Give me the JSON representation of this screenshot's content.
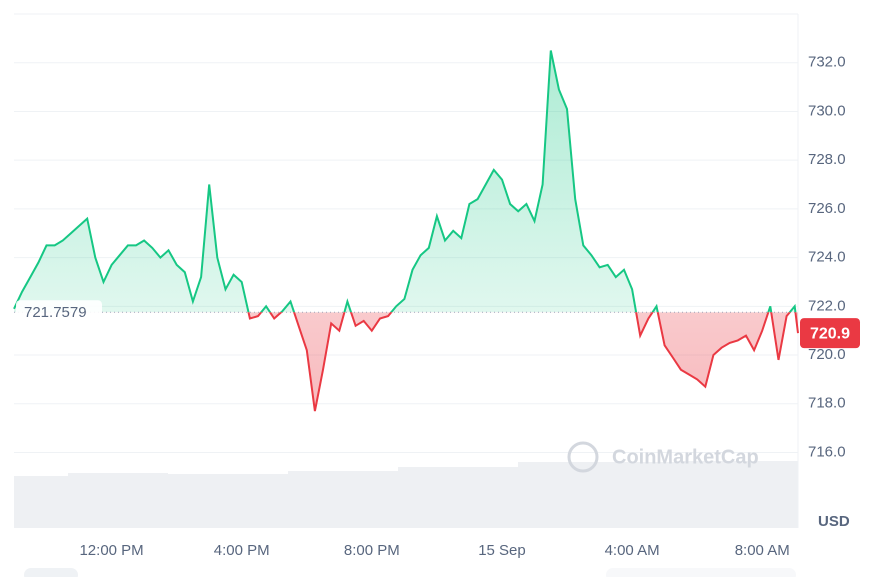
{
  "chart_data": {
    "type": "line",
    "x": [
      9,
      9.25,
      9.5,
      9.75,
      10,
      10.25,
      10.5,
      10.75,
      11,
      11.25,
      11.5,
      11.75,
      12,
      12.25,
      12.5,
      12.75,
      13,
      13.25,
      13.5,
      13.75,
      14,
      14.25,
      14.5,
      14.75,
      15,
      15.25,
      15.5,
      15.75,
      16,
      16.25,
      16.5,
      16.75,
      17,
      17.25,
      17.5,
      17.75,
      18,
      18.25,
      18.5,
      18.75,
      19,
      19.25,
      19.5,
      19.75,
      20,
      20.25,
      20.5,
      20.75,
      21,
      21.25,
      21.5,
      21.75,
      22,
      22.25,
      22.5,
      22.75,
      23,
      23.25,
      23.5,
      23.75,
      24,
      24.25,
      24.5,
      24.75,
      25,
      25.25,
      25.5,
      25.75,
      26,
      26.25,
      26.5,
      26.75,
      27,
      27.25,
      27.5,
      27.75,
      28,
      28.25,
      28.5,
      28.75,
      29,
      29.25,
      29.5,
      29.75,
      30,
      30.25,
      30.5,
      30.75,
      31,
      31.25,
      31.5,
      31.75,
      32,
      32.25,
      32.5,
      32.75,
      33,
      33.1
    ],
    "values": [
      721.9,
      722.6,
      723.2,
      723.8,
      724.5,
      724.5,
      724.7,
      725.0,
      725.3,
      725.6,
      724.0,
      723.0,
      723.7,
      724.1,
      724.5,
      724.5,
      724.7,
      724.4,
      724.0,
      724.3,
      723.7,
      723.4,
      722.2,
      723.2,
      727.0,
      724.0,
      722.7,
      723.3,
      723.0,
      721.5,
      721.6,
      722.0,
      721.5,
      721.8,
      722.2,
      721.2,
      720.2,
      717.7,
      719.4,
      721.3,
      721.0,
      722.2,
      721.2,
      721.4,
      721.0,
      721.5,
      721.6,
      722.0,
      722.3,
      723.5,
      724.1,
      724.4,
      725.7,
      724.7,
      725.1,
      724.8,
      726.2,
      726.4,
      727.0,
      727.6,
      727.2,
      726.2,
      725.9,
      726.2,
      725.5,
      727.0,
      732.5,
      730.9,
      730.1,
      726.4,
      724.5,
      724.1,
      723.6,
      723.7,
      723.2,
      723.5,
      722.7,
      720.8,
      721.5,
      722.0,
      720.4,
      719.9,
      719.4,
      719.2,
      719.0,
      718.7,
      720.0,
      720.3,
      720.5,
      720.6,
      720.8,
      720.2,
      721.0,
      722.0,
      719.8,
      721.6,
      722.0,
      720.9
    ],
    "xlim": [
      9,
      33.1
    ],
    "ylim": [
      712.9,
      734.0
    ],
    "xticks": [
      {
        "value": 12,
        "label": "12:00 PM"
      },
      {
        "value": 16,
        "label": "4:00 PM"
      },
      {
        "value": 20,
        "label": "8:00 PM"
      },
      {
        "value": 24,
        "label": "15 Sep"
      },
      {
        "value": 28,
        "label": "4:00 AM"
      },
      {
        "value": 32,
        "label": "8:00 AM"
      }
    ],
    "yticks": [
      {
        "value": 716,
        "label": "716.0"
      },
      {
        "value": 718,
        "label": "718.0"
      },
      {
        "value": 720,
        "label": "720.0"
      },
      {
        "value": 722,
        "label": "722.0"
      },
      {
        "value": 724,
        "label": "724.0"
      },
      {
        "value": 726,
        "label": "726.0"
      },
      {
        "value": 728,
        "label": "728.0"
      },
      {
        "value": 730,
        "label": "730.0"
      },
      {
        "value": 732,
        "label": "732.0"
      }
    ],
    "baseline": 721.7579,
    "last_price": 720.9,
    "currency": "USD",
    "watermark": "CoinMarketCap",
    "up_color": "#16c784",
    "down_color": "#ea3943",
    "grid": true
  }
}
